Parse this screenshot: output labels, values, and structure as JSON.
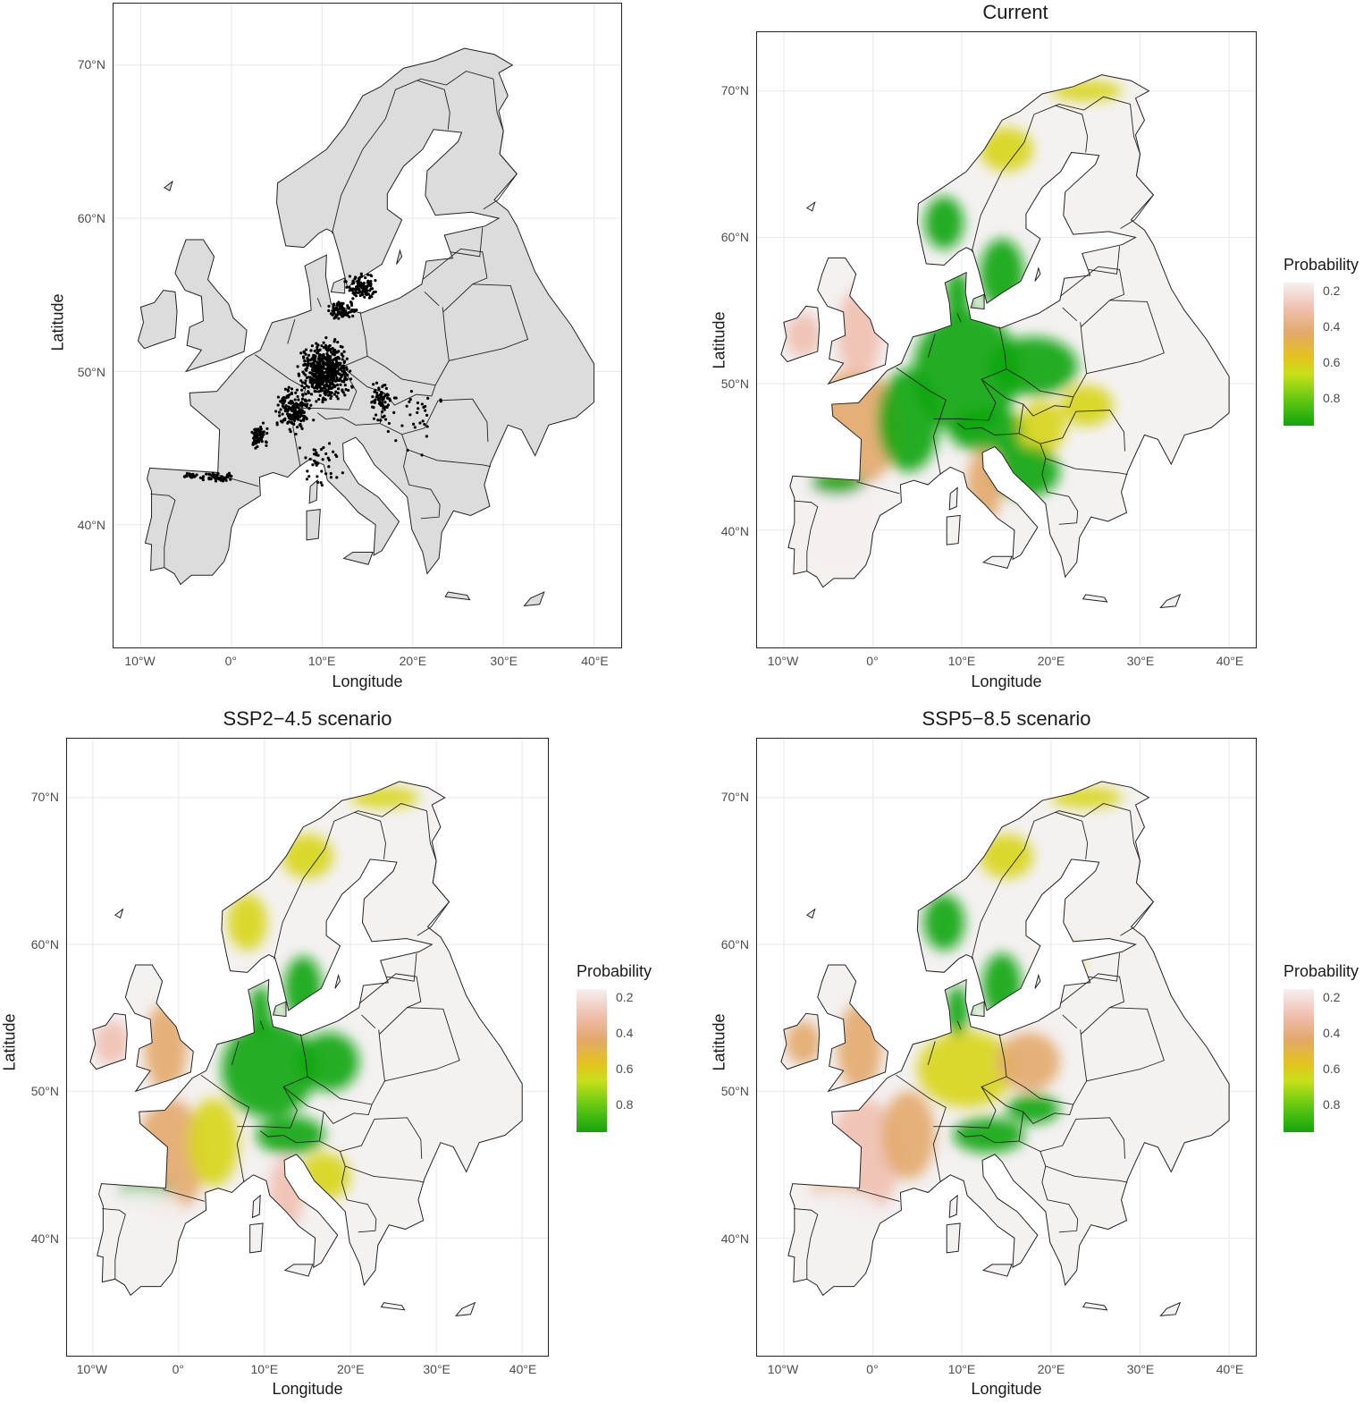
{
  "panels": [
    {
      "id": "occurrence",
      "title": "",
      "xlabel": "Longitude",
      "ylabel": "Latitude",
      "has_legend": false,
      "style": "points"
    },
    {
      "id": "current",
      "title": "Current",
      "xlabel": "Longitude",
      "ylabel": "Latitude",
      "has_legend": true,
      "style": "current"
    },
    {
      "id": "ssp245",
      "title": "SSP2−4.5 scenario",
      "xlabel": "Longitude",
      "ylabel": "Latitude",
      "has_legend": true,
      "style": "ssp245"
    },
    {
      "id": "ssp585",
      "title": "SSP5−8.5 scenario",
      "xlabel": "Longitude",
      "ylabel": "Latitude",
      "has_legend": true,
      "style": "ssp585"
    }
  ],
  "axes": {
    "x_ticks": [
      "10°W",
      "0°",
      "10°E",
      "20°E",
      "30°E",
      "40°E"
    ],
    "y_ticks": [
      "70°N",
      "60°N",
      "50°N",
      "40°N"
    ],
    "x_tick_values": [
      -10,
      0,
      10,
      20,
      30,
      40
    ],
    "y_tick_values": [
      70,
      60,
      50,
      40
    ],
    "xlim": [
      -13,
      43
    ],
    "ylim": [
      32,
      74
    ]
  },
  "legend": {
    "title": "Probability",
    "ticks": [
      "0.2",
      "0.4",
      "0.6",
      "0.8"
    ],
    "tick_values": [
      0.2,
      0.4,
      0.6,
      0.8
    ],
    "range": [
      0.15,
      0.95
    ]
  },
  "colors": {
    "land": "#dcdcdc",
    "border": "#222222",
    "grid": "#ebebeb",
    "low": "#f4f1f1",
    "mid_low": "#f0c0b0",
    "mid": "#e3a86b",
    "mid_high": "#d7d51b",
    "high": "#12a50e"
  }
}
